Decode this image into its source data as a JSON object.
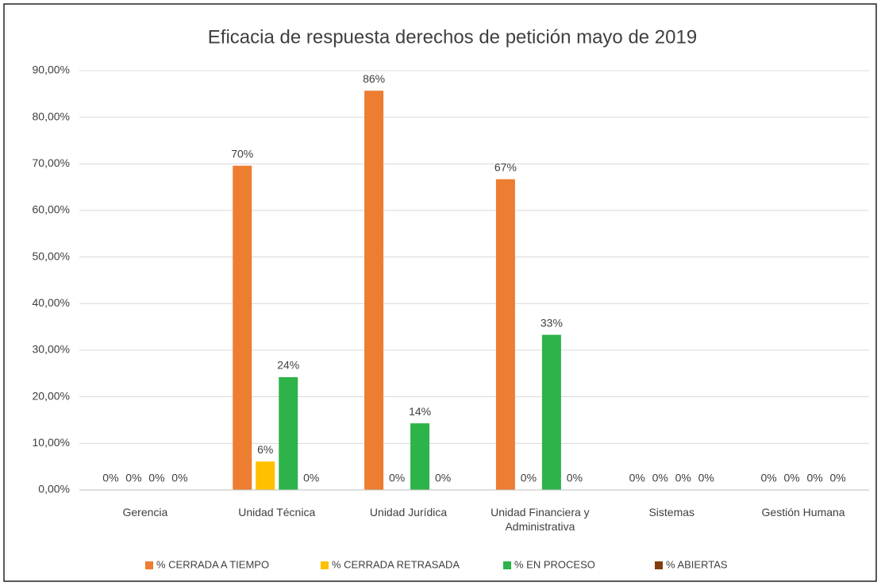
{
  "chart_data": {
    "type": "bar",
    "title": "Eficacia de respuesta derechos de petición mayo de 2019",
    "categories": [
      "Gerencia",
      "Unidad Técnica",
      "Unidad Jurídica",
      "Unidad Financiera y Administrativa",
      "Sistemas",
      "Gestión Humana"
    ],
    "series": [
      {
        "name": "% CERRADA A TIEMPO",
        "color": "#ed7d31",
        "values": [
          0,
          69.6,
          85.7,
          66.7,
          0,
          0
        ],
        "value_labels": [
          "0%",
          "70%",
          "86%",
          "67%",
          "0%",
          "0%"
        ]
      },
      {
        "name": "% CERRADA RETRASADA",
        "color": "#ffc000",
        "values": [
          0,
          6.1,
          0,
          0,
          0,
          0
        ],
        "value_labels": [
          "0%",
          "6%",
          "0%",
          "0%",
          "0%",
          "0%"
        ]
      },
      {
        "name": "% EN PROCESO",
        "color": "#2db34a",
        "values": [
          0,
          24.2,
          14.3,
          33.3,
          0,
          0
        ],
        "value_labels": [
          "0%",
          "24%",
          "14%",
          "33%",
          "0%",
          "0%"
        ]
      },
      {
        "name": "% ABIERTAS",
        "color": "#843c0c",
        "values": [
          0,
          0,
          0,
          0,
          0,
          0
        ],
        "value_labels": [
          "0%",
          "0%",
          "0%",
          "0%",
          "0%",
          "0%"
        ]
      }
    ],
    "ylim": [
      0,
      90
    ],
    "yticks": [
      {
        "value": 0,
        "label": "0,00%"
      },
      {
        "value": 10,
        "label": "10,00%"
      },
      {
        "value": 20,
        "label": "20,00%"
      },
      {
        "value": 30,
        "label": "30,00%"
      },
      {
        "value": 40,
        "label": "40,00%"
      },
      {
        "value": 50,
        "label": "50,00%"
      },
      {
        "value": 60,
        "label": "60,00%"
      },
      {
        "value": 70,
        "label": "70,00%"
      },
      {
        "value": 80,
        "label": "80,00%"
      },
      {
        "value": 90,
        "label": "90,00%"
      }
    ],
    "grid": true,
    "legend": "bottom"
  }
}
